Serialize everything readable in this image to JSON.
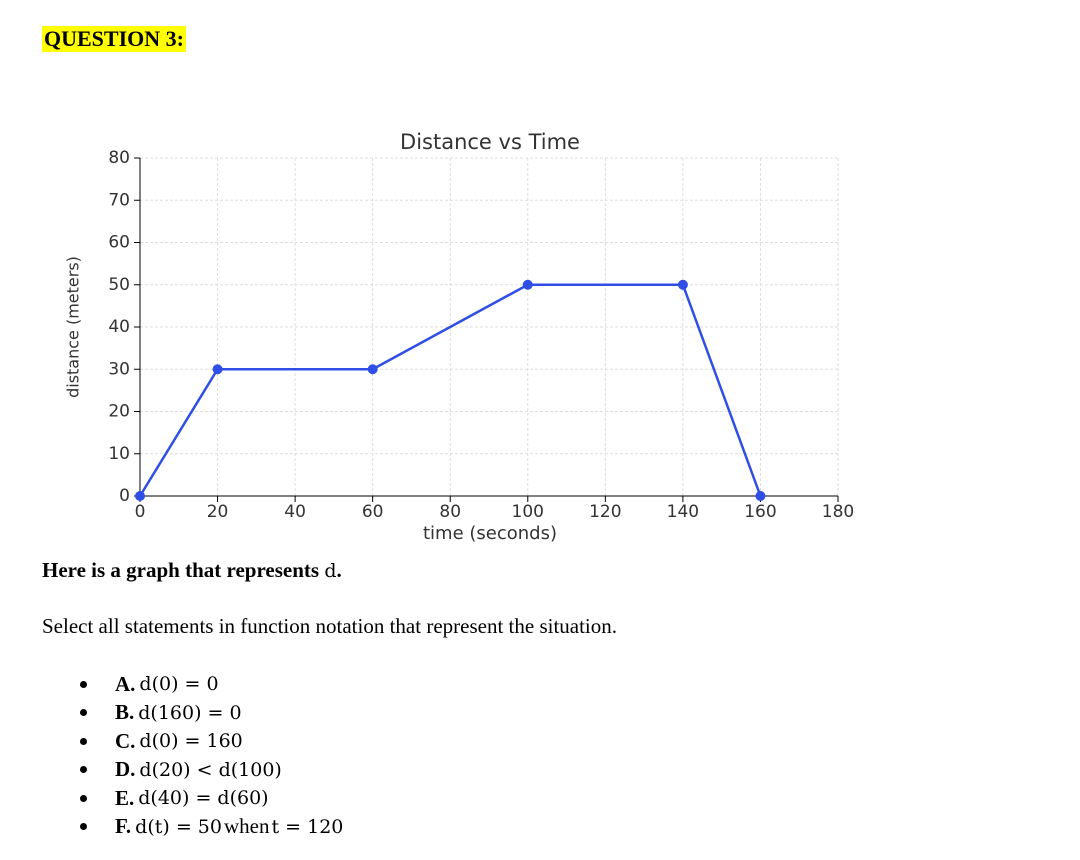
{
  "header": {
    "title": "QUESTION 3:"
  },
  "chart_data": {
    "type": "line",
    "title": "Distance vs Time",
    "x_label": "time (seconds)",
    "y_label": "distance (meters)",
    "x": [
      0,
      20,
      60,
      100,
      140,
      160
    ],
    "values": [
      0,
      30,
      30,
      50,
      50,
      0
    ],
    "color": "#2f4ee6",
    "xlim": [
      0,
      180
    ],
    "ylim": [
      0,
      80
    ],
    "xticks": [
      0,
      20,
      40,
      60,
      80,
      100,
      120,
      140,
      160,
      180
    ],
    "yticks": [
      0,
      10,
      20,
      30,
      40,
      50,
      60,
      70,
      80
    ],
    "grid": true
  },
  "prompt": {
    "text": "Here is a graph that represents ",
    "math": "d",
    "end": "."
  },
  "instruction": "Select all statements in function notation that represent the situation.",
  "options": [
    {
      "label": "A.",
      "segments": [
        {
          "text": "d(0) = 0",
          "style": "math"
        }
      ]
    },
    {
      "label": "B.",
      "segments": [
        {
          "text": "d(160) = 0",
          "style": "math"
        }
      ]
    },
    {
      "label": "C.",
      "segments": [
        {
          "text": "d(0) = 160",
          "style": "math"
        }
      ]
    },
    {
      "label": "D.",
      "segments": [
        {
          "text": "d(20) < d(100)",
          "style": "math"
        }
      ]
    },
    {
      "label": "E.",
      "segments": [
        {
          "text": "d(40) = d(60)",
          "style": "math"
        }
      ]
    },
    {
      "label": "F.",
      "segments": [
        {
          "text": "d(t) = 50",
          "style": "math"
        },
        {
          "text": "when",
          "style": "plain"
        },
        {
          "text": "t = 120",
          "style": "math"
        }
      ]
    }
  ]
}
